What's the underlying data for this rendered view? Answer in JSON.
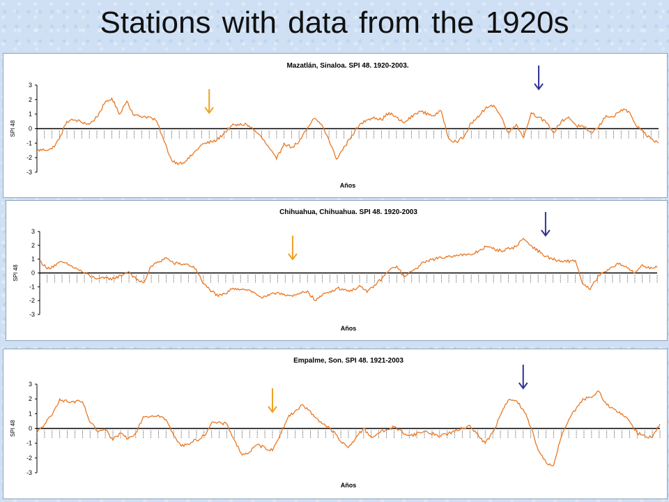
{
  "page": {
    "title": "Stations with data from the 1920s"
  },
  "colors": {
    "series": "#e87722",
    "arrow_orange": "#f0a020",
    "arrow_blue": "#2e3192"
  },
  "chart_data": [
    {
      "type": "line",
      "title": "Mazatlán, Sinaloa. SPI 48. 1920-2003.",
      "xlabel": "Años",
      "ylabel": "SPI 48",
      "yticks": [
        "3",
        "2",
        "1",
        "0",
        "-1",
        "-2",
        "-3"
      ],
      "ylim": [
        -3,
        3
      ],
      "xlim": [
        1920,
        2003
      ],
      "grid": false,
      "series": [
        {
          "name": "",
          "x": [
            1920,
            1922,
            1923,
            1924,
            1925,
            1927,
            1928,
            1929,
            1930,
            1931,
            1932,
            1933,
            1935,
            1936,
            1937,
            1938,
            1939,
            1940,
            1942,
            1944,
            1946,
            1948,
            1949,
            1950,
            1952,
            1953,
            1954,
            1955,
            1956,
            1957,
            1958,
            1959,
            1960,
            1962,
            1963,
            1964,
            1965,
            1966,
            1967,
            1969,
            1971,
            1973,
            1974,
            1975,
            1976,
            1977,
            1978,
            1979,
            1980,
            1981,
            1982,
            1983,
            1984,
            1985,
            1986,
            1987,
            1988,
            1989,
            1990,
            1991,
            1992,
            1993,
            1994,
            1995,
            1996,
            1997,
            1998,
            1999,
            2000,
            2001,
            2002,
            2003
          ],
          "y": [
            -1.5,
            -1.4,
            -0.7,
            0.5,
            0.6,
            0.3,
            0.8,
            1.7,
            2.1,
            1.0,
            1.9,
            0.9,
            0.8,
            0.5,
            -0.9,
            -2.2,
            -2.4,
            -2.2,
            -1.1,
            -0.8,
            0.2,
            0.3,
            -0.1,
            -0.6,
            -2.1,
            -1.0,
            -1.3,
            -0.9,
            -0.1,
            0.7,
            0.3,
            -0.8,
            -2.1,
            -0.5,
            0.2,
            0.6,
            0.8,
            0.6,
            1.1,
            0.4,
            1.2,
            0.9,
            1.2,
            -0.7,
            -0.9,
            -0.6,
            0.4,
            0.8,
            1.5,
            1.6,
            0.8,
            -0.3,
            0.3,
            -0.6,
            1.1,
            0.8,
            0.4,
            -0.3,
            0.5,
            0.8,
            0.2,
            0.1,
            -0.3,
            0.1,
            0.9,
            0.8,
            1.3,
            1.2,
            0.2,
            -0.3,
            -0.7,
            -1.0
          ]
        }
      ],
      "arrows": [
        {
          "color": "orange",
          "x": 1943
        },
        {
          "color": "blue",
          "x": 1987
        }
      ]
    },
    {
      "type": "line",
      "title": "Chihuahua, Chihuahua. SPI 48. 1920-2003",
      "xlabel": "Años",
      "ylabel": "SPI 48",
      "yticks": [
        "3",
        "2",
        "1",
        "0",
        "-1",
        "-2",
        "-3"
      ],
      "ylim": [
        -3,
        3
      ],
      "xlim": [
        1920,
        2003
      ],
      "grid": false,
      "series": [
        {
          "name": "",
          "x": [
            1920,
            1921,
            1923,
            1925,
            1927,
            1928,
            1930,
            1932,
            1933,
            1934,
            1935,
            1937,
            1938,
            1940,
            1941,
            1942,
            1944,
            1945,
            1946,
            1948,
            1950,
            1952,
            1954,
            1956,
            1957,
            1958,
            1960,
            1962,
            1963,
            1964,
            1966,
            1967,
            1968,
            1969,
            1970,
            1971,
            1972,
            1974,
            1976,
            1978,
            1980,
            1982,
            1984,
            1985,
            1986,
            1988,
            1990,
            1992,
            1993,
            1994,
            1995,
            1996,
            1998,
            2000,
            2001,
            2002,
            2003
          ],
          "y": [
            0.9,
            0.3,
            0.8,
            0.3,
            -0.3,
            -0.4,
            -0.4,
            0.1,
            -0.5,
            -0.7,
            0.5,
            1.1,
            0.7,
            0.6,
            0.3,
            -0.8,
            -1.7,
            -1.5,
            -1.1,
            -1.2,
            -1.8,
            -1.4,
            -1.7,
            -1.3,
            -2.0,
            -1.6,
            -1.1,
            -1.3,
            -0.9,
            -1.4,
            -0.4,
            0.2,
            0.5,
            -0.3,
            0.1,
            0.5,
            0.9,
            1.1,
            1.3,
            1.3,
            1.9,
            1.6,
            1.9,
            2.5,
            2.0,
            1.2,
            0.8,
            0.9,
            -0.8,
            -1.2,
            -0.3,
            0.1,
            0.7,
            0.0,
            0.6,
            0.3,
            0.4
          ]
        }
      ],
      "arrows": [
        {
          "color": "orange",
          "x": 1954
        },
        {
          "color": "blue",
          "x": 1988
        }
      ]
    },
    {
      "type": "line",
      "title": "Empalme, Son. SPI 48. 1921-2003",
      "xlabel": "Años",
      "ylabel": "SPI 48",
      "yticks": [
        "3",
        "2",
        "1",
        "0",
        "-1",
        "-2",
        "-3"
      ],
      "ylim": [
        -3,
        3
      ],
      "xlim": [
        1921,
        2003
      ],
      "grid": false,
      "series": [
        {
          "name": "",
          "x": [
            1921,
            1922,
            1923,
            1924,
            1925,
            1927,
            1928,
            1929,
            1930,
            1931,
            1932,
            1933,
            1934,
            1935,
            1937,
            1938,
            1939,
            1940,
            1942,
            1943,
            1944,
            1946,
            1947,
            1948,
            1949,
            1950,
            1952,
            1953,
            1954,
            1955,
            1956,
            1958,
            1960,
            1961,
            1962,
            1963,
            1964,
            1965,
            1966,
            1968,
            1970,
            1972,
            1974,
            1976,
            1978,
            1980,
            1981,
            1982,
            1983,
            1984,
            1985,
            1986,
            1987,
            1988,
            1989,
            1990,
            1991,
            1992,
            1993,
            1994,
            1995,
            1996,
            1997,
            1998,
            1999,
            2000,
            2001,
            2002,
            2003
          ],
          "y": [
            -0.3,
            0.3,
            0.9,
            2.0,
            1.8,
            1.8,
            0.4,
            -0.2,
            -0.1,
            -0.8,
            -0.3,
            -0.7,
            -0.3,
            0.8,
            0.9,
            0.6,
            -0.5,
            -1.2,
            -0.8,
            -0.5,
            0.4,
            0.3,
            -0.8,
            -1.8,
            -1.6,
            -1.1,
            -1.5,
            -0.4,
            0.7,
            1.2,
            1.6,
            0.6,
            -0.2,
            -0.9,
            -1.3,
            -0.6,
            0.0,
            -0.6,
            -0.3,
            0.1,
            -0.5,
            -0.2,
            -0.5,
            -0.2,
            0.2,
            -1.0,
            -0.3,
            0.9,
            1.9,
            1.9,
            1.3,
            0.1,
            -1.5,
            -2.3,
            -2.5,
            -0.6,
            0.6,
            1.4,
            2.0,
            2.1,
            2.5,
            1.6,
            1.3,
            1.0,
            0.5,
            -0.3,
            -0.5,
            -0.6,
            0.3
          ]
        }
      ],
      "arrows": [
        {
          "color": "orange",
          "x": 1952
        },
        {
          "color": "blue",
          "x": 1985
        }
      ]
    }
  ]
}
